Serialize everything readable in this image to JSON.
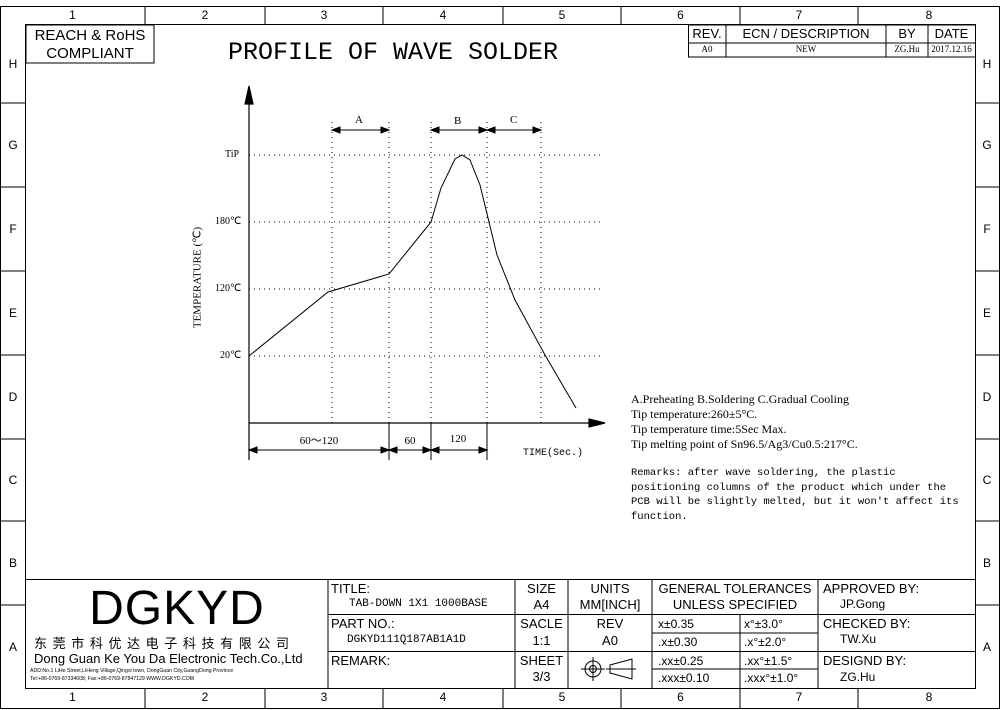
{
  "border": {
    "col_labels": [
      "1",
      "2",
      "3",
      "4",
      "5",
      "6",
      "7",
      "8"
    ],
    "row_labels": [
      "H",
      "G",
      "F",
      "E",
      "D",
      "C",
      "B",
      "A"
    ]
  },
  "compliance": {
    "line1": "REACH & RoHS",
    "line2": "COMPLIANT"
  },
  "page_title": "PROFILE OF WAVE SOLDER",
  "revision_table": {
    "headers": [
      "REV.",
      "ECN / DESCRIPTION",
      "BY",
      "DATE"
    ],
    "row": [
      "A0",
      "NEW",
      "ZG.Hu",
      "2017.12.16"
    ]
  },
  "chart_data": {
    "type": "line",
    "xlabel": "TIME(Sec.)",
    "ylabel": "TEMPERATURE (℃)",
    "y_ticks": [
      "TiP",
      "180℃",
      "120℃",
      "20℃"
    ],
    "phase_labels": [
      "A",
      "B",
      "C"
    ],
    "time_segments": [
      "60～120",
      "60",
      "120"
    ],
    "grid": "dotted"
  },
  "notes": {
    "legend": "A.Preheating  B.Soldering  C.Gradual Cooling",
    "tip_temp": "Tip temperature:260±5°C.",
    "tip_time": "Tip temperature time:5Sec Max.",
    "melting": "Tip melting point of Sn96.5/Ag3/Cu0.5:217°C.",
    "remarks": [
      "Remarks: after wave soldering, the plastic",
      "positioning columns of the product  which under the",
      "PCB will be slightly melted, but it won't affect its",
      "function."
    ]
  },
  "title_block": {
    "logo": "DGKYD",
    "company_cn": "东 莞 市 科 优 达 电 子 科 技 有 限 公 司",
    "company_en": "Dong Guan Ke You Da Electronic Tech.Co.,Ltd",
    "address": "ADD:No.1 LiHe Street,LiHeng Village,Qingxi town, DongGuan City,GuangDong Province",
    "contact": "Tel:+86-0769-87334608; Fax:+86-0769-87847129  WWW.DGKYD.COM",
    "title_label": "TITLE:",
    "title_value": "TAB-DOWN 1X1 1000BASE",
    "part_label": "PART NO.:",
    "part_value": "DGKYD111Q187AB1A1D",
    "remark_label": "REMARK:",
    "size_label": "SIZE",
    "size_value": "A4",
    "units_label": "UNITS",
    "units_value": "MM[INCH]",
    "scale_label": "SACLE",
    "scale_value": "1:1",
    "rev_label": "REV",
    "rev_value": "A0",
    "sheet_label": "SHEET",
    "sheet_value": "3/3",
    "tol_title1": "GENERAL TOLERANCES",
    "tol_title2": "UNLESS SPECIFIED",
    "tolerances": [
      [
        "x±0.35",
        "x°±3.0°"
      ],
      [
        ".x±0.30",
        ".x°±2.0°"
      ],
      [
        ".xx±0.25",
        ".xx°±1.5°"
      ],
      [
        ".xxx±0.10",
        ".xxx°±1.0°"
      ]
    ],
    "approved_label": "APPROVED BY:",
    "approved_value": "JP.Gong",
    "checked_label": "CHECKED BY:",
    "checked_value": "TW.Xu",
    "designed_label": "DESIGND BY:",
    "designed_value": "ZG.Hu"
  }
}
